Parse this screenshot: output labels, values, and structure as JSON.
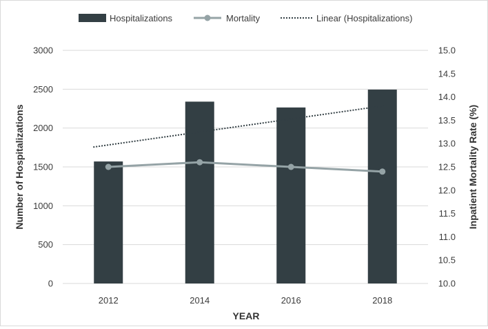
{
  "chart_data": {
    "type": "bar+line",
    "title": "",
    "categories": [
      "2012",
      "2014",
      "2016",
      "2018"
    ],
    "xlabel": "YEAR",
    "ylabel_left": "Number of Hospitalizations",
    "ylabel_right": "Inpatient Mortality Rate (%)",
    "ylim_left": [
      0,
      3000
    ],
    "ylim_right": [
      10.0,
      15.0
    ],
    "left_ticks": [
      "0",
      "500",
      "1000",
      "1500",
      "2000",
      "2500",
      "3000"
    ],
    "right_ticks": [
      "10.0",
      "10.5",
      "11.0",
      "11.5",
      "12.0",
      "12.5",
      "13.0",
      "13.5",
      "14.0",
      "14.5",
      "15.0"
    ],
    "grid": true,
    "legend_position": "top",
    "series": [
      {
        "name": "Hospitalizations",
        "type": "bar",
        "axis": "left",
        "color": "#333f44",
        "values": [
          1570,
          2340,
          2265,
          2495
        ]
      },
      {
        "name": "Mortality",
        "type": "line",
        "axis": "right",
        "color": "#95a3a6",
        "values": [
          12.5,
          12.6,
          12.5,
          12.4
        ]
      },
      {
        "name": "Linear (Hospitalizations)",
        "type": "trendline",
        "axis": "left",
        "color": "#333f44",
        "style": "dotted",
        "values": [
          1755,
          1933,
          2111,
          2289
        ]
      }
    ]
  }
}
